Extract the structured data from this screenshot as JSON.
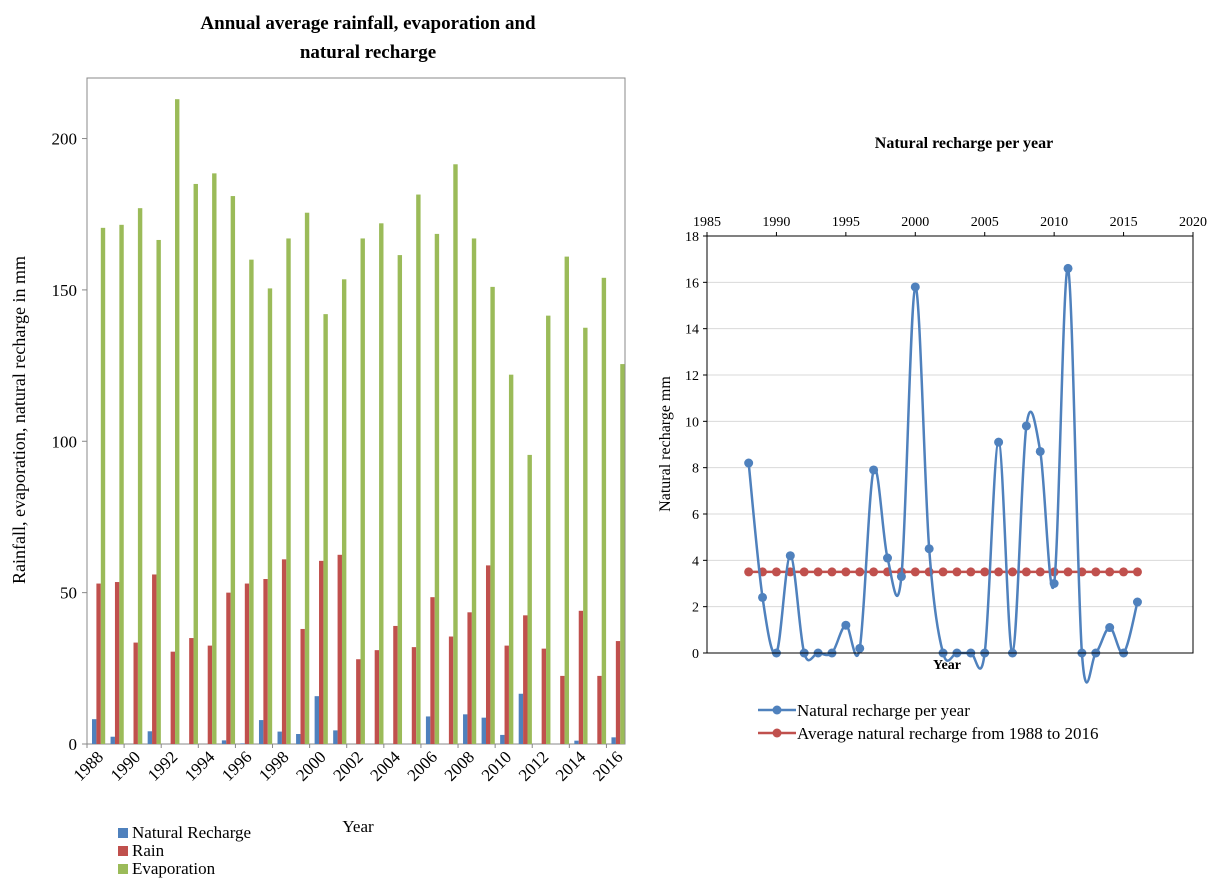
{
  "chart_data": [
    {
      "type": "bar",
      "title": "Annual  average rainfall, evaporation and natural recharge",
      "title_lines": [
        "Annual  average rainfall,  evaporation and",
        "natural recharge"
      ],
      "xlabel": "Year",
      "ylabel": "Rainfall,  evaporation,  natural recharge in mm",
      "ylim": [
        0,
        220
      ],
      "yticks": [
        0,
        50,
        100,
        150,
        200
      ],
      "grid": false,
      "legend_position": "bottom-left",
      "categories": [
        "1988",
        "1989",
        "1990",
        "1991",
        "1992",
        "1993",
        "1994",
        "1995",
        "1996",
        "1997",
        "1998",
        "1999",
        "2000",
        "2001",
        "2002",
        "2003",
        "2004",
        "2005",
        "2006",
        "2007",
        "2008",
        "2009",
        "2010",
        "2011",
        "2012",
        "2013",
        "2014",
        "2015",
        "2016"
      ],
      "tick_labels": [
        "1988",
        "1990",
        "1992",
        "1994",
        "1996",
        "1998",
        "2000",
        "2002",
        "2004",
        "2006",
        "2008",
        "2010",
        "2012",
        "2014",
        "2016"
      ],
      "series": [
        {
          "name": "Natural Recharge",
          "color": "#4f81bd",
          "values": [
            8.2,
            2.4,
            0,
            4.2,
            0,
            0,
            0,
            1.2,
            0.2,
            7.9,
            4.1,
            3.3,
            15.8,
            4.5,
            0,
            0,
            0,
            0,
            9.1,
            0,
            9.8,
            8.7,
            3.0,
            16.6,
            0,
            0,
            1.1,
            0,
            2.2
          ]
        },
        {
          "name": "Rain",
          "color": "#c0504d",
          "values": [
            53,
            53.5,
            33.5,
            56,
            30.5,
            35,
            32.5,
            50,
            53,
            54.5,
            61,
            38,
            60.5,
            62.5,
            28,
            31,
            39,
            32,
            48.5,
            35.5,
            43.5,
            59,
            32.5,
            42.5,
            31.5,
            22.5,
            44,
            22.5,
            34
          ]
        },
        {
          "name": "Evaporation",
          "color": "#9bbb59",
          "values": [
            170.5,
            171.5,
            177,
            166.5,
            213,
            185,
            188.5,
            181,
            160,
            150.5,
            167,
            175.5,
            142,
            153.5,
            167,
            172,
            161.5,
            181.5,
            168.5,
            191.5,
            167,
            151,
            122,
            95.5,
            141.5,
            161,
            137.5,
            154,
            125.5
          ]
        }
      ]
    },
    {
      "type": "line",
      "title": "Natural recharge per year",
      "xlabel": "Year",
      "ylabel": "Natural recharge mm",
      "xlim": [
        1985,
        2020
      ],
      "xticks": [
        1985,
        1990,
        1995,
        2000,
        2005,
        2010,
        2015,
        2020
      ],
      "ylim": [
        0,
        18
      ],
      "yticks": [
        0,
        2,
        4,
        6,
        8,
        10,
        12,
        14,
        16,
        18
      ],
      "grid": true,
      "x_axis_position": "top",
      "legend_position": "bottom",
      "x": [
        1988,
        1989,
        1990,
        1991,
        1992,
        1993,
        1994,
        1995,
        1996,
        1997,
        1998,
        1999,
        2000,
        2001,
        2002,
        2003,
        2004,
        2005,
        2006,
        2007,
        2008,
        2009,
        2010,
        2011,
        2012,
        2013,
        2014,
        2015,
        2016
      ],
      "series": [
        {
          "name": "Natural recharge per year",
          "color": "#4f81bd",
          "values": [
            8.2,
            2.4,
            0,
            4.2,
            0,
            0,
            0,
            1.2,
            0.2,
            7.9,
            4.1,
            3.3,
            15.8,
            4.5,
            0,
            0,
            0,
            0,
            9.1,
            0,
            9.8,
            8.7,
            3.0,
            16.6,
            0,
            0,
            1.1,
            0,
            2.2
          ]
        },
        {
          "name": "Average natural recharge from 1988 to 2016",
          "color": "#c0504d",
          "values": [
            3.5,
            3.5,
            3.5,
            3.5,
            3.5,
            3.5,
            3.5,
            3.5,
            3.5,
            3.5,
            3.5,
            3.5,
            3.5,
            3.5,
            3.5,
            3.5,
            3.5,
            3.5,
            3.5,
            3.5,
            3.5,
            3.5,
            3.5,
            3.5,
            3.5,
            3.5,
            3.5,
            3.5,
            3.5
          ]
        }
      ]
    }
  ]
}
